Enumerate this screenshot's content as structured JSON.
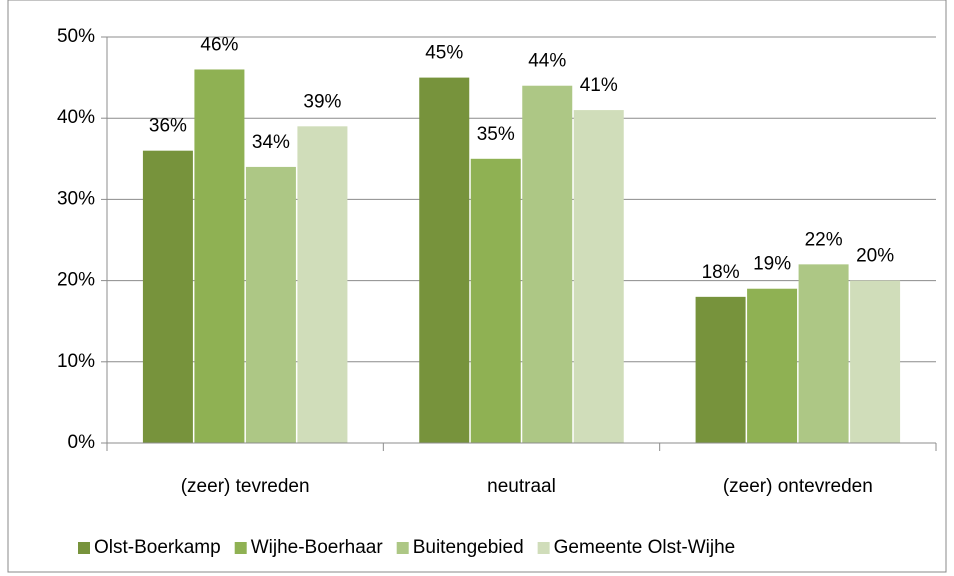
{
  "chart_data": {
    "type": "bar",
    "categories": [
      "(zeer) tevreden",
      "neutraal",
      "(zeer) ontevreden"
    ],
    "series": [
      {
        "name": "Olst-Boerkamp",
        "color": "#77933c",
        "values": [
          36,
          45,
          18
        ],
        "value_labels": [
          "36%",
          "45%",
          "18%"
        ]
      },
      {
        "name": "Wijhe-Boerhaar",
        "color": "#8fb153",
        "values": [
          46,
          35,
          19
        ],
        "value_labels": [
          "46%",
          "35%",
          "19%"
        ]
      },
      {
        "name": "Buitengebied",
        "color": "#adc785",
        "values": [
          34,
          44,
          22
        ],
        "value_labels": [
          "34%",
          "44%",
          "22%"
        ]
      },
      {
        "name": "Gemeente Olst-Wijhe",
        "color": "#d0ddba",
        "values": [
          39,
          41,
          20
        ],
        "value_labels": [
          "39%",
          "41%",
          "20%"
        ]
      }
    ],
    "ylim": [
      0,
      50
    ],
    "yticks": [
      {
        "value": 0,
        "label": "0%"
      },
      {
        "value": 10,
        "label": "10%"
      },
      {
        "value": 20,
        "label": "20%"
      },
      {
        "value": 30,
        "label": "30%"
      },
      {
        "value": 40,
        "label": "40%"
      },
      {
        "value": 50,
        "label": "50%"
      }
    ],
    "grid": true,
    "legend": "bottom"
  }
}
